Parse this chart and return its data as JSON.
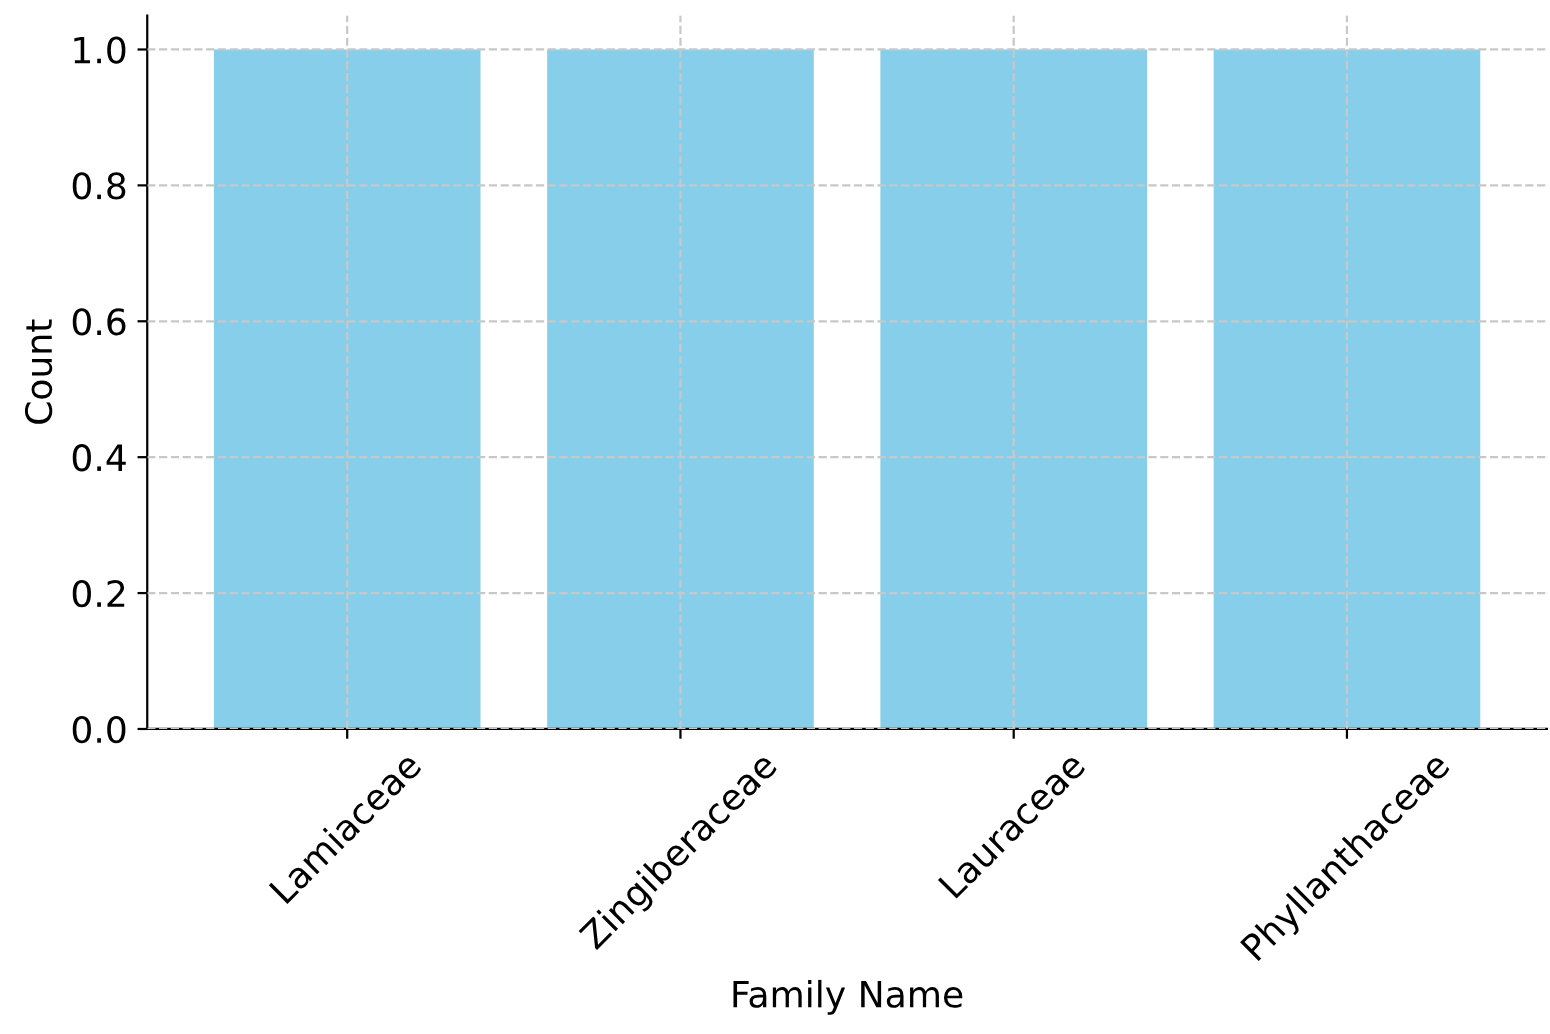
{
  "chart_data": {
    "type": "bar",
    "xlabel": "Family Name",
    "ylabel": "Count",
    "categories": [
      "Lamiaceae",
      "Zingiberaceae",
      "Lauraceae",
      "Phyllanthaceae"
    ],
    "values": [
      1,
      1,
      1,
      1
    ],
    "color": "#87ceeb",
    "ylim": [
      0,
      1.05
    ],
    "yticks": [
      {
        "value": 0,
        "label": "0.0"
      },
      {
        "value": 0.2,
        "label": "0.2"
      },
      {
        "value": 0.4,
        "label": "0.4"
      },
      {
        "value": 0.6,
        "label": "0.6"
      },
      {
        "value": 0.8,
        "label": "0.8"
      },
      {
        "value": 1,
        "label": "1.0"
      }
    ],
    "grid": true,
    "line_style": "dashed"
  }
}
